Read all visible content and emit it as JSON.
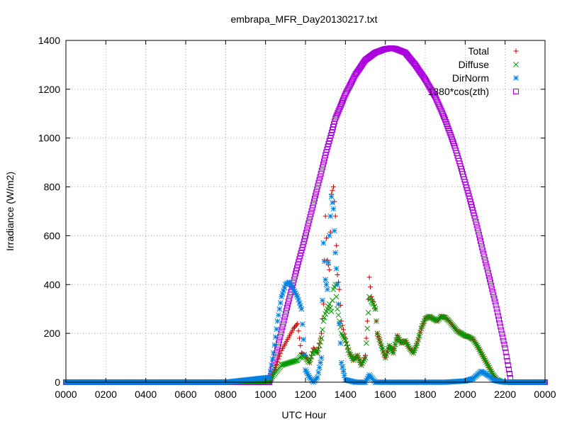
{
  "chart_data": {
    "type": "scatter",
    "title": "embrapa_MFR_Day20130217.txt",
    "xlabel": "UTC Hour",
    "ylabel": "Irradiance (W/m2)",
    "xlim": [
      0,
      24
    ],
    "ylim": [
      0,
      1400
    ],
    "x_ticks": [
      0,
      2,
      4,
      6,
      8,
      10,
      12,
      14,
      16,
      18,
      20,
      22,
      24
    ],
    "x_tick_labels": [
      "0000",
      "0200",
      "0400",
      "0600",
      "0800",
      "1000",
      "1200",
      "1400",
      "1600",
      "1800",
      "2000",
      "2200",
      "0000"
    ],
    "y_ticks": [
      0,
      200,
      400,
      600,
      800,
      1000,
      1200,
      1400
    ],
    "y_tick_labels": [
      "0",
      "200",
      "400",
      "600",
      "800",
      "1000",
      "1200",
      "1400"
    ],
    "grid": true,
    "legend_position": "top-right",
    "series": [
      {
        "name": "Total",
        "marker": "plus",
        "color": "#cc0000",
        "x": [
          0,
          4,
          8,
          10.2,
          10.5,
          10.8,
          11.0,
          11.2,
          11.4,
          11.6,
          11.8,
          12.0,
          12.2,
          12.4,
          12.6,
          12.8,
          12.9,
          13.0,
          13.1,
          13.2,
          13.3,
          13.4,
          13.5,
          13.6,
          13.7,
          13.8,
          14.0,
          14.2,
          14.4,
          14.6,
          14.8,
          15.0,
          15.1,
          15.2,
          15.3,
          15.4,
          15.5,
          15.6,
          15.8,
          16.0,
          16.2,
          16.4,
          16.6,
          16.8,
          17.0,
          17.2,
          17.4,
          17.6,
          17.8,
          18.0,
          18.2,
          18.4,
          18.6,
          18.8,
          19.0,
          19.2,
          19.4,
          19.6,
          19.8,
          20.0,
          20.2,
          20.4,
          20.6,
          20.8,
          21.0,
          21.2,
          21.4,
          21.6,
          21.8,
          22.0,
          22.2,
          23,
          24
        ],
        "y": [
          0,
          0,
          0,
          5,
          60,
          130,
          160,
          190,
          220,
          240,
          120,
          110,
          80,
          140,
          120,
          200,
          320,
          680,
          500,
          460,
          770,
          800,
          680,
          440,
          380,
          250,
          180,
          120,
          90,
          110,
          70,
          110,
          250,
          430,
          350,
          330,
          300,
          200,
          150,
          100,
          150,
          120,
          190,
          160,
          170,
          140,
          120,
          160,
          220,
          260,
          270,
          260,
          250,
          270,
          265,
          250,
          230,
          210,
          200,
          190,
          185,
          175,
          150,
          120,
          90,
          60,
          30,
          10,
          2,
          0,
          0,
          0,
          0
        ]
      },
      {
        "name": "Diffuse",
        "marker": "cross",
        "color": "#009900",
        "x": [
          0,
          4,
          8,
          10.2,
          10.5,
          10.8,
          11.0,
          11.2,
          11.4,
          11.6,
          11.8,
          12.0,
          12.2,
          12.4,
          12.6,
          12.8,
          12.9,
          13.0,
          13.1,
          13.2,
          13.3,
          13.4,
          13.5,
          13.6,
          13.7,
          13.8,
          14.0,
          14.2,
          14.4,
          14.6,
          14.8,
          15.0,
          15.1,
          15.2,
          15.3,
          15.4,
          15.5,
          15.6,
          15.8,
          16.0,
          16.2,
          16.4,
          16.6,
          16.8,
          17.0,
          17.2,
          17.4,
          17.6,
          17.8,
          18.0,
          18.2,
          18.4,
          18.6,
          18.8,
          19.0,
          19.2,
          19.4,
          19.6,
          19.8,
          20.0,
          20.2,
          20.4,
          20.6,
          20.8,
          21.0,
          21.2,
          21.4,
          21.6,
          21.8,
          22.0,
          22.2,
          23,
          24
        ],
        "y": [
          0,
          0,
          0,
          5,
          40,
          70,
          75,
          80,
          85,
          90,
          110,
          100,
          80,
          130,
          120,
          180,
          250,
          280,
          300,
          320,
          290,
          380,
          400,
          300,
          250,
          200,
          170,
          120,
          90,
          110,
          70,
          100,
          220,
          350,
          330,
          320,
          300,
          200,
          150,
          100,
          150,
          120,
          190,
          160,
          170,
          140,
          120,
          160,
          220,
          260,
          270,
          260,
          250,
          270,
          265,
          250,
          230,
          210,
          200,
          190,
          185,
          175,
          150,
          120,
          90,
          60,
          30,
          10,
          2,
          0,
          0,
          0,
          0
        ]
      },
      {
        "name": "DirNorm",
        "marker": "star",
        "color": "#0080e0",
        "x": [
          0,
          4,
          8,
          10.2,
          10.4,
          10.6,
          10.8,
          11.0,
          11.2,
          11.4,
          11.6,
          11.8,
          12.0,
          12.2,
          12.4,
          12.6,
          12.8,
          12.9,
          13.0,
          13.1,
          13.2,
          13.3,
          13.4,
          13.5,
          13.6,
          13.8,
          14.0,
          14.5,
          15.0,
          15.2,
          15.5,
          16.0,
          17.0,
          18.0,
          19.0,
          20.0,
          20.4,
          20.6,
          20.8,
          21.0,
          21.2,
          21.4,
          21.6,
          22.0,
          23,
          24
        ],
        "y": [
          0,
          0,
          0,
          20,
          120,
          250,
          350,
          400,
          410,
          380,
          350,
          300,
          50,
          20,
          0,
          20,
          100,
          570,
          420,
          380,
          600,
          760,
          710,
          530,
          400,
          80,
          10,
          0,
          0,
          30,
          0,
          0,
          0,
          0,
          0,
          5,
          15,
          30,
          45,
          35,
          25,
          10,
          5,
          0,
          0,
          0
        ]
      },
      {
        "name": "1380*cos(zth)",
        "marker": "square",
        "color": "#aa00dd",
        "x": [
          0,
          10.2,
          10.5,
          11.0,
          11.5,
          12.0,
          12.5,
          13.0,
          13.5,
          14.0,
          14.5,
          15.0,
          15.5,
          16.0,
          16.3,
          16.5,
          17.0,
          17.5,
          18.0,
          18.5,
          19.0,
          19.5,
          20.0,
          20.5,
          21.0,
          21.5,
          22.0,
          22.3,
          22.5,
          24
        ],
        "y": [
          0,
          0,
          105,
          280,
          445,
          600,
          765,
          930,
          1080,
          1180,
          1260,
          1320,
          1350,
          1365,
          1368,
          1366,
          1350,
          1300,
          1240,
          1170,
          1075,
          960,
          820,
          670,
          500,
          330,
          140,
          0,
          0,
          0
        ]
      }
    ]
  }
}
